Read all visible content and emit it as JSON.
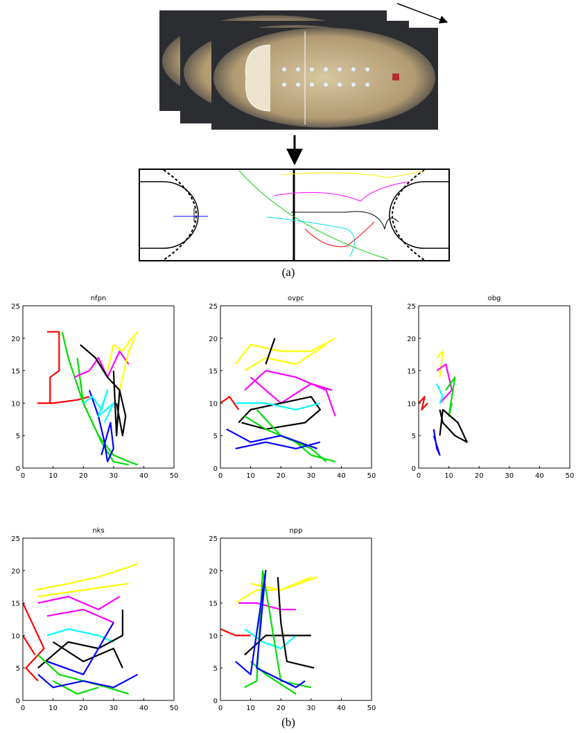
{
  "figure": {
    "caption_a": "(a)",
    "caption_b": "(b)"
  },
  "chart_data": [
    {
      "type": "line",
      "title": "nfpn",
      "xlim": [
        0,
        50
      ],
      "ylim": [
        0,
        25
      ],
      "xticks": [
        0,
        10,
        20,
        30,
        40,
        50
      ],
      "yticks": [
        0,
        5,
        10,
        15,
        20,
        25
      ],
      "series": [
        {
          "color": "#ff0000",
          "x": [
            8,
            12,
            12,
            9,
            9,
            5,
            10,
            18,
            22
          ],
          "values": [
            21,
            21,
            15,
            14,
            10,
            10,
            10,
            10.5,
            11
          ]
        },
        {
          "color": "#00dd00",
          "x": [
            13,
            15,
            20,
            25,
            30,
            35,
            38
          ],
          "values": [
            21,
            17,
            10,
            5,
            2,
            1,
            0.5
          ]
        },
        {
          "color": "#00dd00",
          "x": [
            18,
            20,
            26,
            30,
            35
          ],
          "values": [
            17,
            10,
            4,
            1,
            0.5
          ]
        },
        {
          "color": "#0000ff",
          "x": [
            22,
            25,
            27,
            28,
            30,
            29,
            26
          ],
          "values": [
            12,
            8,
            4,
            1,
            3,
            7,
            2
          ]
        },
        {
          "color": "#00ffff",
          "x": [
            20,
            23,
            26,
            28,
            25,
            30,
            27
          ],
          "values": [
            10,
            11,
            9,
            12,
            8,
            10,
            7
          ]
        },
        {
          "color": "#ff00ff",
          "x": [
            17,
            22,
            25,
            28,
            32,
            35
          ],
          "values": [
            14,
            15,
            17,
            14,
            18,
            16
          ]
        },
        {
          "color": "#ffff00",
          "x": [
            28,
            30,
            33,
            36,
            38
          ],
          "values": [
            15,
            19,
            18,
            20,
            21
          ]
        },
        {
          "color": "#ffff00",
          "x": [
            32,
            35,
            37
          ],
          "values": [
            12,
            18,
            20
          ]
        },
        {
          "color": "#000000",
          "x": [
            19,
            24,
            28,
            32,
            34,
            33,
            31
          ],
          "values": [
            19,
            17,
            14,
            12,
            8,
            5,
            10
          ]
        },
        {
          "color": "#000000",
          "x": [
            30,
            31,
            32
          ],
          "values": [
            15,
            5,
            12
          ]
        }
      ]
    },
    {
      "type": "line",
      "title": "ovpc",
      "xlim": [
        0,
        50
      ],
      "ylim": [
        0,
        25
      ],
      "xticks": [
        0,
        10,
        20,
        30,
        40,
        50
      ],
      "yticks": [
        0,
        5,
        10,
        15,
        20,
        25
      ],
      "series": [
        {
          "color": "#ffff00",
          "x": [
            5,
            10,
            20,
            30,
            38
          ],
          "values": [
            16,
            19,
            18,
            18,
            20
          ]
        },
        {
          "color": "#ffff00",
          "x": [
            8,
            15,
            25,
            35
          ],
          "values": [
            15,
            17,
            16,
            19
          ]
        },
        {
          "color": "#ff00ff",
          "x": [
            8,
            15,
            25,
            35,
            38
          ],
          "values": [
            12,
            15,
            14,
            12,
            8
          ]
        },
        {
          "color": "#ff00ff",
          "x": [
            10,
            20,
            30,
            37
          ],
          "values": [
            14,
            10,
            13,
            12
          ]
        },
        {
          "color": "#ff0000",
          "x": [
            0,
            3,
            6
          ],
          "values": [
            10,
            11,
            9
          ]
        },
        {
          "color": "#000000",
          "x": [
            6,
            10,
            20,
            30,
            33,
            28,
            15,
            7
          ],
          "values": [
            7,
            9,
            10,
            11,
            9,
            7,
            6,
            7
          ]
        },
        {
          "color": "#000000",
          "x": [
            15,
            18
          ],
          "values": [
            16,
            20
          ]
        },
        {
          "color": "#00ffff",
          "x": [
            5,
            15,
            25,
            33
          ],
          "values": [
            10,
            10,
            9,
            10
          ]
        },
        {
          "color": "#00dd00",
          "x": [
            8,
            15,
            25,
            30,
            38
          ],
          "values": [
            8,
            6,
            4,
            2,
            1
          ]
        },
        {
          "color": "#00dd00",
          "x": [
            12,
            20,
            30,
            35
          ],
          "values": [
            9,
            5,
            3,
            1
          ]
        },
        {
          "color": "#0000ff",
          "x": [
            2,
            10,
            20,
            32
          ],
          "values": [
            6,
            4,
            5,
            3
          ]
        },
        {
          "color": "#0000ff",
          "x": [
            5,
            15,
            25,
            33
          ],
          "values": [
            3,
            4,
            3,
            4
          ]
        }
      ]
    },
    {
      "type": "line",
      "title": "obg",
      "xlim": [
        0,
        50
      ],
      "ylim": [
        0,
        25
      ],
      "xticks": [
        0,
        10,
        20,
        30,
        40,
        50
      ],
      "yticks": [
        0,
        5,
        10,
        15,
        20,
        25
      ],
      "series": [
        {
          "color": "#ff0000",
          "x": [
            0,
            2,
            1,
            3
          ],
          "values": [
            10,
            11,
            9,
            10
          ]
        },
        {
          "color": "#ffff00",
          "x": [
            6,
            8,
            7
          ],
          "values": [
            17,
            18,
            14
          ]
        },
        {
          "color": "#ff00ff",
          "x": [
            6,
            9,
            11,
            7
          ],
          "values": [
            15,
            16,
            12,
            10
          ]
        },
        {
          "color": "#00ffff",
          "x": [
            6,
            8,
            7
          ],
          "values": [
            13,
            11,
            10
          ]
        },
        {
          "color": "#00dd00",
          "x": [
            9,
            12,
            10,
            11
          ],
          "values": [
            12,
            14,
            8,
            10
          ]
        },
        {
          "color": "#000000",
          "x": [
            7,
            8,
            12,
            16,
            13,
            8,
            7
          ],
          "values": [
            9,
            7,
            5,
            4,
            7,
            9,
            5
          ]
        },
        {
          "color": "#0000ff",
          "x": [
            5,
            6,
            7,
            5
          ],
          "values": [
            6,
            3,
            2,
            5
          ]
        }
      ]
    },
    {
      "type": "line",
      "title": "nks",
      "xlim": [
        0,
        50
      ],
      "ylim": [
        0,
        25
      ],
      "xticks": [
        0,
        10,
        20,
        30,
        40,
        50
      ],
      "yticks": [
        0,
        5,
        10,
        15,
        20,
        25
      ],
      "series": [
        {
          "color": "#ffff00",
          "x": [
            4,
            15,
            25,
            38
          ],
          "values": [
            17,
            18,
            19,
            21
          ]
        },
        {
          "color": "#ffff00",
          "x": [
            5,
            20,
            35
          ],
          "values": [
            16,
            17,
            18
          ]
        },
        {
          "color": "#ff00ff",
          "x": [
            5,
            15,
            25,
            32
          ],
          "values": [
            15,
            16,
            14,
            16
          ]
        },
        {
          "color": "#ff00ff",
          "x": [
            8,
            20,
            30
          ],
          "values": [
            13,
            14,
            12
          ]
        },
        {
          "color": "#ff0000",
          "x": [
            0,
            3,
            7,
            1,
            5
          ],
          "values": [
            15,
            12,
            8,
            5,
            3
          ]
        },
        {
          "color": "#ff0000",
          "x": [
            0,
            4
          ],
          "values": [
            10,
            7
          ]
        },
        {
          "color": "#00ffff",
          "x": [
            8,
            15,
            25,
            30
          ],
          "values": [
            10,
            11,
            10,
            9
          ]
        },
        {
          "color": "#000000",
          "x": [
            5,
            15,
            25,
            33,
            33
          ],
          "values": [
            5,
            9,
            8,
            10,
            14
          ]
        },
        {
          "color": "#000000",
          "x": [
            10,
            20,
            30,
            33
          ],
          "values": [
            9,
            6,
            8,
            5
          ]
        },
        {
          "color": "#00dd00",
          "x": [
            5,
            12,
            20,
            28,
            35
          ],
          "values": [
            7,
            4,
            3,
            2,
            1
          ]
        },
        {
          "color": "#00dd00",
          "x": [
            10,
            18,
            25
          ],
          "values": [
            3,
            1,
            2
          ]
        },
        {
          "color": "#0000ff",
          "x": [
            5,
            10,
            20,
            30,
            38
          ],
          "values": [
            4,
            2,
            3,
            2,
            4
          ]
        },
        {
          "color": "#0000ff",
          "x": [
            8,
            20,
            30
          ],
          "values": [
            6,
            4,
            12
          ]
        }
      ]
    },
    {
      "type": "line",
      "title": "npp",
      "xlim": [
        0,
        50
      ],
      "ylim": [
        0,
        25
      ],
      "xticks": [
        0,
        10,
        20,
        30,
        40,
        50
      ],
      "yticks": [
        0,
        5,
        10,
        15,
        20,
        25
      ],
      "series": [
        {
          "color": "#ff0000",
          "x": [
            0,
            5,
            10
          ],
          "values": [
            11,
            10,
            10
          ]
        },
        {
          "color": "#ffff00",
          "x": [
            5,
            12,
            20,
            32
          ],
          "values": [
            15,
            17,
            17,
            19
          ]
        },
        {
          "color": "#ffff00",
          "x": [
            10,
            20,
            30
          ],
          "values": [
            18,
            17,
            19
          ]
        },
        {
          "color": "#ff00ff",
          "x": [
            6,
            12,
            20,
            25
          ],
          "values": [
            15,
            15,
            14,
            14
          ]
        },
        {
          "color": "#00ffff",
          "x": [
            8,
            14,
            20,
            25
          ],
          "values": [
            11,
            9,
            8,
            10
          ]
        },
        {
          "color": "#000000",
          "x": [
            8,
            15,
            25,
            30
          ],
          "values": [
            7,
            10,
            10,
            10
          ]
        },
        {
          "color": "#000000",
          "x": [
            19,
            20,
            22,
            31
          ],
          "values": [
            19,
            12,
            6,
            5
          ]
        },
        {
          "color": "#00dd00",
          "x": [
            8,
            12,
            14,
            20,
            30
          ],
          "values": [
            2,
            3,
            20,
            3,
            2
          ]
        },
        {
          "color": "#00dd00",
          "x": [
            10,
            15,
            25
          ],
          "values": [
            6,
            4,
            1
          ]
        },
        {
          "color": "#0000ff",
          "x": [
            5,
            10,
            15,
            12,
            25,
            28
          ],
          "values": [
            6,
            4,
            20,
            5,
            2,
            3
          ]
        }
      ]
    }
  ]
}
